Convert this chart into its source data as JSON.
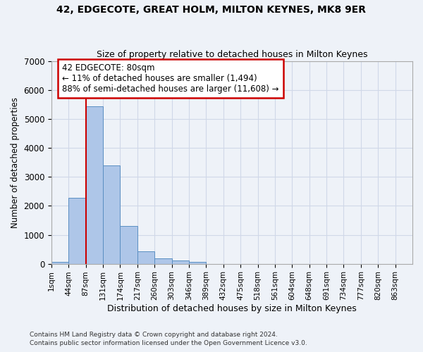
{
  "title": "42, EDGECOTE, GREAT HOLM, MILTON KEYNES, MK8 9ER",
  "subtitle": "Size of property relative to detached houses in Milton Keynes",
  "xlabel": "Distribution of detached houses by size in Milton Keynes",
  "ylabel": "Number of detached properties",
  "footer_line1": "Contains HM Land Registry data © Crown copyright and database right 2024.",
  "footer_line2": "Contains public sector information licensed under the Open Government Licence v3.0.",
  "bin_labels": [
    "1sqm",
    "44sqm",
    "87sqm",
    "131sqm",
    "174sqm",
    "217sqm",
    "260sqm",
    "303sqm",
    "346sqm",
    "389sqm",
    "432sqm",
    "475sqm",
    "518sqm",
    "561sqm",
    "604sqm",
    "648sqm",
    "691sqm",
    "734sqm",
    "777sqm",
    "820sqm",
    "863sqm"
  ],
  "bar_values": [
    70,
    2270,
    5450,
    3400,
    1300,
    420,
    180,
    100,
    60,
    0,
    0,
    0,
    0,
    0,
    0,
    0,
    0,
    0,
    0,
    0,
    0
  ],
  "bar_color": "#aec6e8",
  "bar_edge_color": "#5a8fc2",
  "grid_color": "#d0d8e8",
  "bg_color": "#eef2f8",
  "vline_color": "#cc0000",
  "annotation_text": "42 EDGECOTE: 80sqm\n← 11% of detached houses are smaller (1,494)\n88% of semi-detached houses are larger (11,608) →",
  "annotation_box_color": "white",
  "annotation_box_edge": "#cc0000",
  "ylim": [
    0,
    7000
  ],
  "bin_width": 43,
  "vline_bin_index": 2
}
